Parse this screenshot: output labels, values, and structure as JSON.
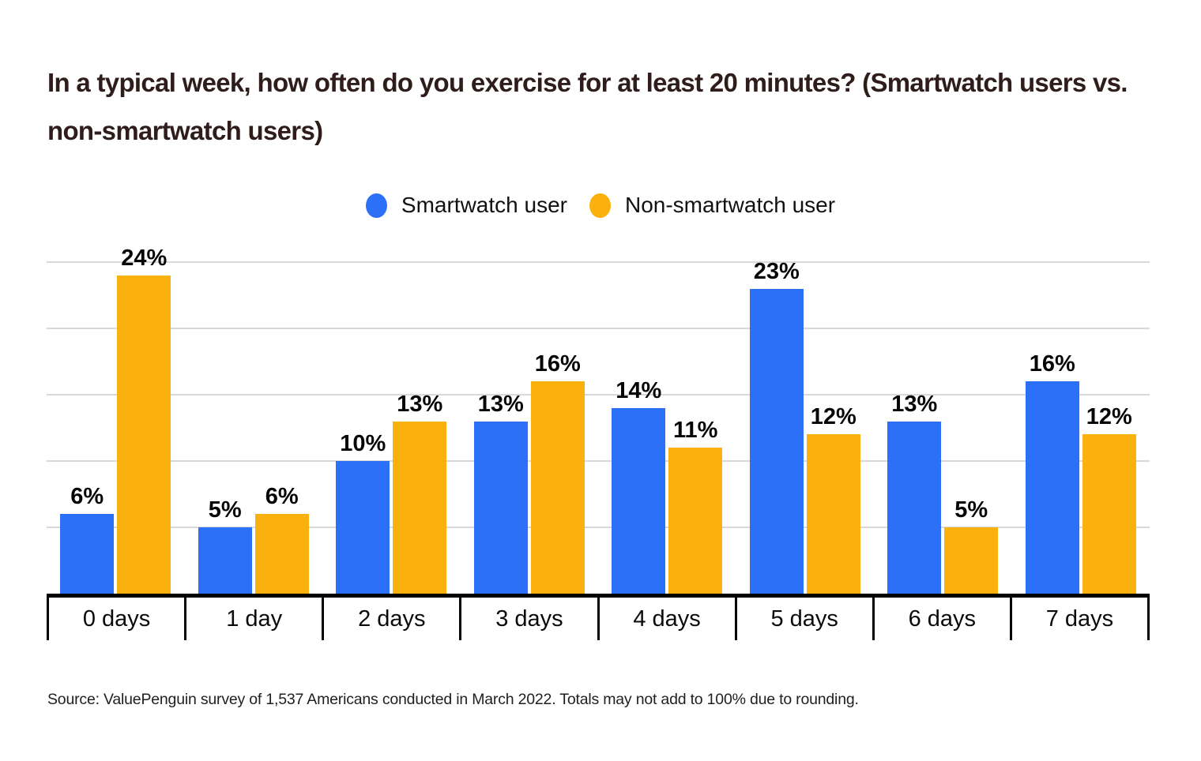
{
  "title": "In a typical week, how often do you exercise for at least 20 minutes? (Smartwatch users vs. non-smartwatch users)",
  "source": "Source: ValuePenguin survey of 1,537 Americans conducted in March 2022. Totals may not add to 100% due to rounding.",
  "colors": {
    "smartwatch": "#2B70F6",
    "non_smartwatch": "#FBB10D",
    "gridline": "#D9D9D9",
    "axis": "#000000",
    "title_text": "#2F1D1B"
  },
  "chart_data": {
    "type": "bar",
    "title": "In a typical week, how often do you exercise for at least 20 minutes? (Smartwatch users vs. non-smartwatch users)",
    "categories": [
      "0 days",
      "1 day",
      "2 days",
      "3 days",
      "4 days",
      "5 days",
      "6 days",
      "7 days"
    ],
    "series": [
      {
        "name": "Smartwatch user",
        "color": "#2B70F6",
        "values": [
          6,
          5,
          10,
          13,
          14,
          23,
          13,
          16
        ]
      },
      {
        "name": "Non-smartwatch user",
        "color": "#FBB10D",
        "values": [
          24,
          6,
          13,
          16,
          11,
          12,
          5,
          12
        ]
      }
    ],
    "value_suffix": "%",
    "xlabel": "",
    "ylabel": "",
    "ylim": [
      0,
      25
    ],
    "gridline_step": 5,
    "grid": true,
    "legend_position": "top-center",
    "data_labels": true
  }
}
